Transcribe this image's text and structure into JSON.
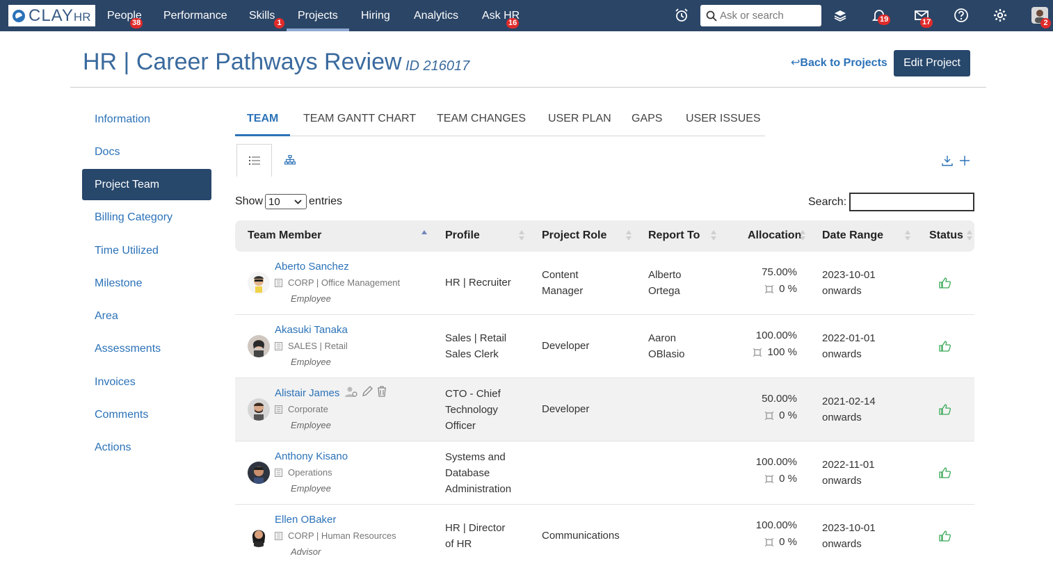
{
  "app": {
    "logo_text": "CLAY",
    "logo_suffix": "HR",
    "nav": [
      {
        "label": "People",
        "badge": "38"
      },
      {
        "label": "Performance",
        "badge": ""
      },
      {
        "label": "Skills",
        "badge": "1"
      },
      {
        "label": "Projects",
        "badge": ""
      },
      {
        "label": "Hiring",
        "badge": ""
      },
      {
        "label": "Analytics",
        "badge": ""
      },
      {
        "label": "Ask HR",
        "badge": "16"
      }
    ],
    "search_placeholder": "Ask or search",
    "notifications_badge": "19",
    "messages_badge": "17",
    "profile_badge": "2"
  },
  "header": {
    "title": "HR | Career Pathways Review",
    "id": "ID 216017",
    "back_link": "Back to Projects",
    "edit_button": "Edit Project"
  },
  "sidebar": {
    "items": [
      {
        "label": "Information"
      },
      {
        "label": "Docs"
      },
      {
        "label": "Project Team"
      },
      {
        "label": "Billing Category"
      },
      {
        "label": "Time Utilized"
      },
      {
        "label": "Milestone"
      },
      {
        "label": "Area"
      },
      {
        "label": "Assessments"
      },
      {
        "label": "Invoices"
      },
      {
        "label": "Comments"
      },
      {
        "label": "Actions"
      }
    ],
    "active_index": 2
  },
  "tabs": [
    {
      "label": "TEAM"
    },
    {
      "label": "TEAM GANTT CHART"
    },
    {
      "label": "TEAM CHANGES"
    },
    {
      "label": "USER PLAN"
    },
    {
      "label": "GAPS"
    },
    {
      "label": "USER ISSUES"
    }
  ],
  "table_controls": {
    "show_label": "Show",
    "entries_value": "10",
    "entries_label": "entries",
    "search_label": "Search:"
  },
  "table": {
    "columns": [
      "Team Member",
      "Profile",
      "Project Role",
      "Report To",
      "Allocation",
      "Date Range",
      "Status"
    ],
    "rows": [
      {
        "name": "Aberto Sanchez",
        "dept": "CORP | Office Management",
        "type": "Employee",
        "profile": [
          "HR | Recruiter"
        ],
        "role": [
          "Content",
          "Manager"
        ],
        "report_to": [
          "Alberto",
          "Ortega"
        ],
        "allocation": "75.00%",
        "actual": "0 %",
        "date": "2023-10-01",
        "range": "onwards"
      },
      {
        "name": "Akasuki Tanaka",
        "dept": "SALES | Retail",
        "type": "Employee",
        "profile": [
          "Sales | Retail",
          "Sales Clerk"
        ],
        "role": [
          "Developer"
        ],
        "report_to": [
          "Aaron",
          "OBlasio"
        ],
        "allocation": "100.00%",
        "actual": "100 %",
        "date": "2022-01-01",
        "range": "onwards"
      },
      {
        "name": "Alistair James",
        "dept": "Corporate",
        "type": "Employee",
        "profile": [
          "CTO - Chief",
          "Technology",
          "Officer"
        ],
        "role": [
          "Developer"
        ],
        "report_to": [],
        "allocation": "50.00%",
        "actual": "0 %",
        "date": "2021-02-14",
        "range": "onwards"
      },
      {
        "name": "Anthony Kisano",
        "dept": "Operations",
        "type": "Employee",
        "profile": [
          "Systems and",
          "Database",
          "Administration"
        ],
        "role": [],
        "report_to": [],
        "allocation": "100.00%",
        "actual": "0 %",
        "date": "2022-11-01",
        "range": "onwards"
      },
      {
        "name": "Ellen OBaker",
        "dept": "CORP | Human Resources",
        "type": "Advisor",
        "profile": [
          "HR | Director",
          "of HR"
        ],
        "role": [
          "Communications"
        ],
        "report_to": [],
        "allocation": "100.00%",
        "actual": "0 %",
        "date": "2023-10-01",
        "range": "onwards"
      }
    ]
  },
  "colors": {
    "navbar": "#2b4566",
    "accent": "#2b72b8",
    "primary_button": "#27476b",
    "badge": "#e02b2b",
    "status_ok": "#3aa757"
  }
}
